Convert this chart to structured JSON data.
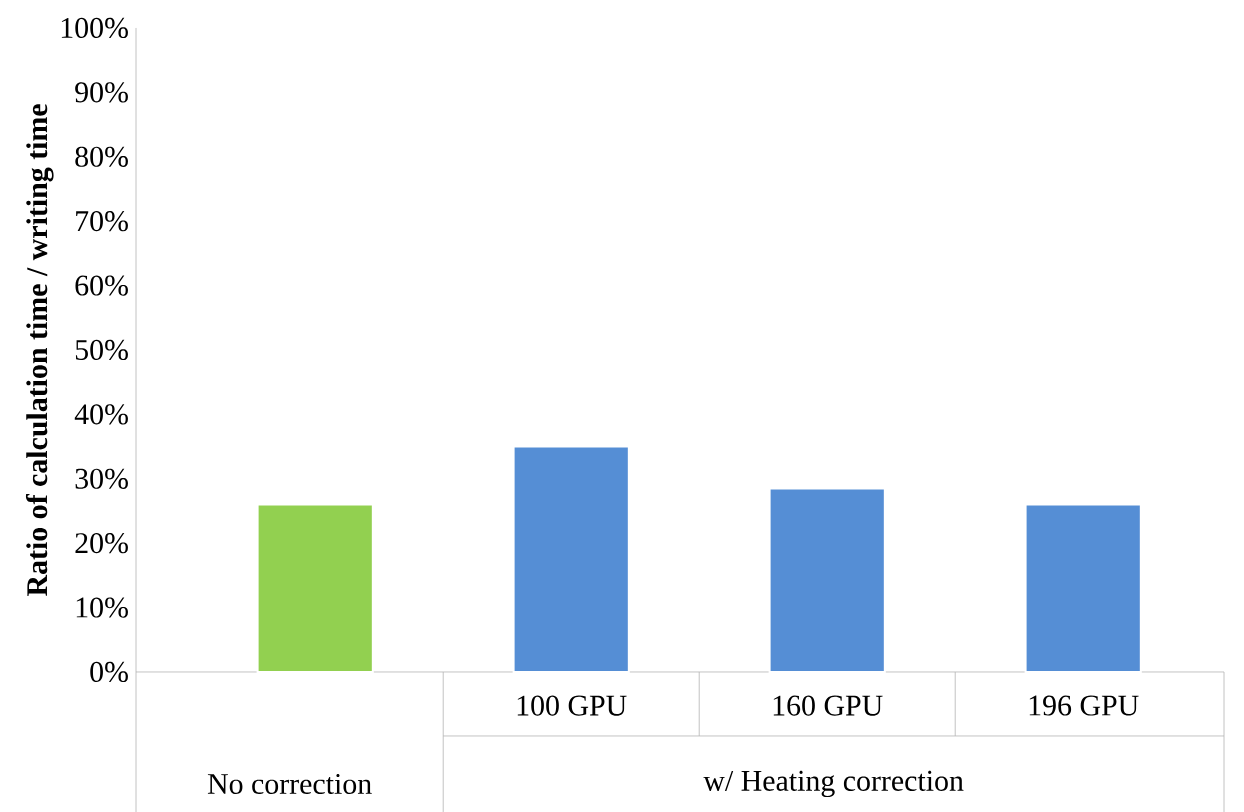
{
  "chart_data": {
    "type": "bar",
    "ylabel": "**Ratio of calculation time / writing time**",
    "categories": [
      null,
      "100 GPU",
      "160 GPU",
      "196 GPU"
    ],
    "values": [
      26,
      35,
      28.5,
      26
    ],
    "colors": [
      "#92d050",
      "#558ed5",
      "#558ed5",
      "#558ed5"
    ],
    "ylim": [
      0,
      100
    ],
    "yticks": [
      {
        "value": 0,
        "label": "0%"
      },
      {
        "value": 10,
        "label": "10%"
      },
      {
        "value": 20,
        "label": "20%"
      },
      {
        "value": 30,
        "label": "30%"
      },
      {
        "value": 40,
        "label": "40%"
      },
      {
        "value": 50,
        "label": "50%"
      },
      {
        "value": 60,
        "label": "60%"
      },
      {
        "value": 70,
        "label": "70%"
      },
      {
        "value": 80,
        "label": "80%"
      },
      {
        "value": 90,
        "label": "90%"
      },
      {
        "value": 100,
        "label": "100%"
      }
    ],
    "annotations": [
      "No correction",
      "w/ Heating correction"
    ],
    "grid": false
  }
}
